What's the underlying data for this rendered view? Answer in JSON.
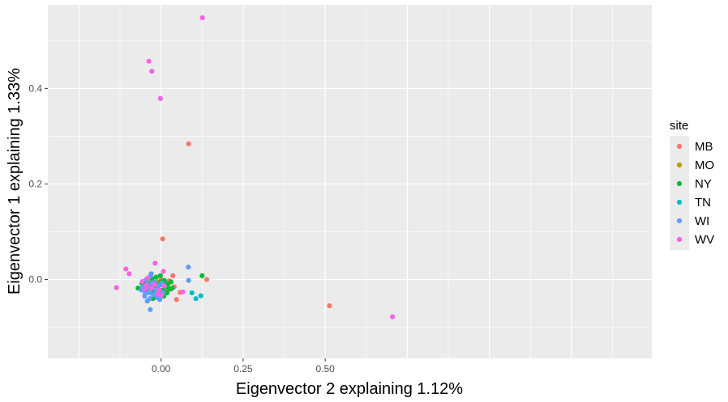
{
  "chart_data": {
    "type": "scatter",
    "xlabel": "Eigenvector 2 explaining 1.12%",
    "ylabel": "Eigenvector 1 explaining 1.33%",
    "xlim": [
      -0.345,
      1.495
    ],
    "ylim": [
      -0.165,
      0.575
    ],
    "x_ticks": [
      0.0,
      0.25,
      0.5
    ],
    "x_tick_labels": [
      "0.00",
      "0.25",
      "0.50"
    ],
    "y_ticks": [
      0.0,
      0.2,
      0.4
    ],
    "y_tick_labels": [
      "0.0",
      "0.2",
      "0.4"
    ],
    "grid": true,
    "legend": {
      "title": "site",
      "position": "right"
    },
    "series": [
      {
        "name": "MB",
        "color": "#F8766D",
        "points": [
          [
            0.084,
            0.284
          ],
          [
            0.005,
            0.085
          ],
          [
            0.513,
            -0.055
          ],
          [
            0.139,
            0.0
          ],
          [
            0.047,
            -0.042
          ],
          [
            0.036,
            0.008
          ],
          [
            0.058,
            -0.027
          ],
          [
            0.02,
            -0.008
          ],
          [
            0.03,
            -0.02
          ],
          [
            0.005,
            -0.005
          ],
          [
            -0.005,
            -0.03
          ],
          [
            0.015,
            -0.025
          ],
          [
            0.01,
            -0.012
          ],
          [
            -0.015,
            -0.018
          ],
          [
            0.025,
            -0.003
          ],
          [
            0.04,
            -0.015
          ],
          [
            0.0,
            0.0
          ],
          [
            -0.01,
            -0.022
          ]
        ]
      },
      {
        "name": "MO",
        "color": "#B79F00",
        "points": [
          [
            -0.025,
            -0.02
          ],
          [
            0.0,
            -0.01
          ],
          [
            0.02,
            -0.015
          ],
          [
            -0.01,
            -0.005
          ],
          [
            0.01,
            -0.025
          ]
        ]
      },
      {
        "name": "NY",
        "color": "#00BA38",
        "points": [
          [
            0.125,
            0.008
          ],
          [
            0.034,
            -0.018
          ],
          [
            -0.07,
            -0.018
          ],
          [
            -0.055,
            -0.012
          ],
          [
            -0.048,
            -0.005
          ],
          [
            -0.04,
            -0.02
          ],
          [
            -0.035,
            -0.008
          ],
          [
            -0.03,
            -0.015
          ],
          [
            -0.028,
            0.002
          ],
          [
            -0.022,
            -0.025
          ],
          [
            -0.018,
            -0.01
          ],
          [
            -0.015,
            0.005
          ],
          [
            -0.012,
            -0.018
          ],
          [
            -0.008,
            -0.03
          ],
          [
            -0.005,
            -0.012
          ],
          [
            0.0,
            -0.005
          ],
          [
            0.005,
            -0.022
          ],
          [
            0.01,
            -0.002
          ],
          [
            0.015,
            -0.015
          ],
          [
            0.02,
            -0.01
          ],
          [
            0.025,
            -0.02
          ],
          [
            0.03,
            -0.005
          ],
          [
            -0.045,
            -0.025
          ],
          [
            -0.038,
            0.003
          ],
          [
            -0.02,
            -0.032
          ],
          [
            -0.002,
            0.008
          ],
          [
            0.008,
            -0.035
          ],
          [
            -0.058,
            -0.008
          ],
          [
            -0.025,
            -0.04
          ],
          [
            0.018,
            -0.028
          ]
        ]
      },
      {
        "name": "TN",
        "color": "#00BFC4",
        "points": [
          [
            0.106,
            -0.04
          ],
          [
            0.121,
            -0.034
          ],
          [
            0.094,
            -0.028
          ],
          [
            -0.02,
            -0.03
          ],
          [
            -0.01,
            -0.012
          ]
        ]
      },
      {
        "name": "WI",
        "color": "#619CFF",
        "points": [
          [
            0.083,
            0.026
          ],
          [
            0.084,
            -0.002
          ],
          [
            -0.033,
            -0.063
          ],
          [
            -0.03,
            0.012
          ],
          [
            -0.042,
            -0.045
          ],
          [
            -0.055,
            -0.015
          ],
          [
            -0.05,
            -0.035
          ],
          [
            -0.045,
            0.0
          ],
          [
            -0.04,
            -0.01
          ],
          [
            -0.036,
            -0.028
          ],
          [
            -0.034,
            -0.04
          ],
          [
            -0.032,
            0.008
          ],
          [
            -0.028,
            -0.018
          ],
          [
            -0.024,
            -0.032
          ],
          [
            -0.02,
            -0.005
          ],
          [
            -0.016,
            -0.022
          ],
          [
            -0.012,
            -0.038
          ],
          [
            -0.008,
            -0.015
          ],
          [
            -0.004,
            -0.042
          ],
          [
            0.002,
            -0.008
          ],
          [
            0.006,
            -0.028
          ],
          [
            -0.06,
            -0.022
          ],
          [
            -0.048,
            -0.028
          ],
          [
            -0.038,
            -0.018
          ],
          [
            -0.026,
            -0.008
          ]
        ]
      },
      {
        "name": "WV",
        "color": "#F564E3",
        "points": [
          [
            0.126,
            0.548
          ],
          [
            -0.037,
            0.457
          ],
          [
            -0.028,
            0.436
          ],
          [
            -0.002,
            0.379
          ],
          [
            -0.136,
            -0.017
          ],
          [
            -0.107,
            0.022
          ],
          [
            -0.097,
            0.012
          ],
          [
            -0.018,
            0.034
          ],
          [
            0.007,
            0.017
          ],
          [
            -0.057,
            -0.004
          ],
          [
            -0.045,
            -0.012
          ],
          [
            -0.03,
            -0.018
          ],
          [
            -0.01,
            -0.03
          ],
          [
            0.001,
            -0.033
          ],
          [
            0.066,
            -0.026
          ],
          [
            0.705,
            -0.078
          ],
          [
            -0.05,
            -0.02
          ],
          [
            -0.04,
            0.003
          ],
          [
            -0.02,
            -0.01
          ],
          [
            -0.005,
            -0.022
          ],
          [
            0.01,
            -0.014
          ]
        ]
      }
    ]
  }
}
